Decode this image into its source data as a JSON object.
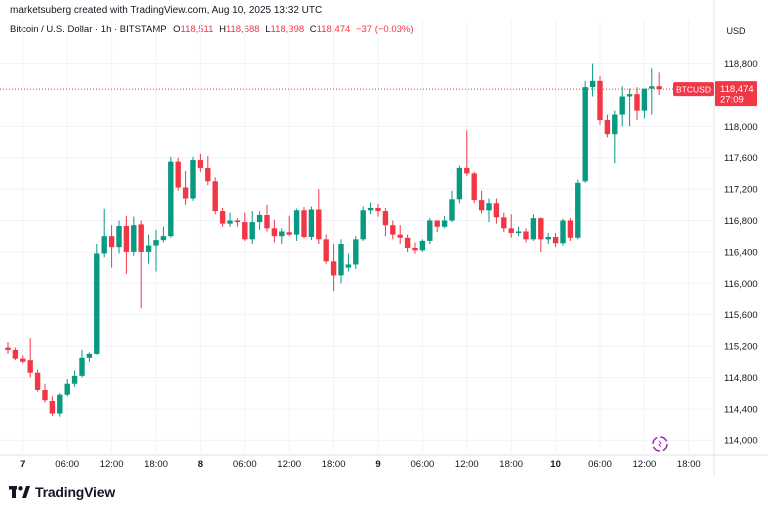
{
  "header": {
    "text": "marketsuberg created with TradingView.com, Aug 10, 2025 13:32 UTC"
  },
  "legend": {
    "symbol": "Bitcoin / U.S. Dollar · 1h · BITSTAMP",
    "o_label": "O",
    "o_value": "118,511",
    "h_label": "H",
    "h_value": "118,688",
    "l_label": "L",
    "l_value": "118,398",
    "c_label": "C",
    "c_value": "118,474",
    "change": "−37 (−0.03%)"
  },
  "currency": "USD",
  "footer": {
    "brand": "TradingView"
  },
  "colors": {
    "up": "#089981",
    "down": "#f23645",
    "grid": "#f0f3fa",
    "axis_text": "#131722"
  },
  "chart_data": {
    "type": "candlestick",
    "price_label": {
      "symbol": "BTCUSD",
      "price": "118,474",
      "countdown": "27:09",
      "value": 118474
    },
    "ylim": [
      113850,
      119100
    ],
    "y_ticks": [
      {
        "v": 118800,
        "t": "118,800"
      },
      {
        "v": 118000,
        "t": "118,000"
      },
      {
        "v": 117600,
        "t": "117,600"
      },
      {
        "v": 117200,
        "t": "117,200"
      },
      {
        "v": 116800,
        "t": "116,800"
      },
      {
        "v": 116400,
        "t": "116,400"
      },
      {
        "v": 116000,
        "t": "116,000"
      },
      {
        "v": 115600,
        "t": "115,600"
      },
      {
        "v": 115200,
        "t": "115,200"
      },
      {
        "v": 114800,
        "t": "114,800"
      },
      {
        "v": 114400,
        "t": "114,400"
      },
      {
        "v": 114000,
        "t": "114,000"
      }
    ],
    "x_ticks": [
      {
        "i": 2,
        "t": "7",
        "bold": true
      },
      {
        "i": 8,
        "t": "06:00"
      },
      {
        "i": 14,
        "t": "12:00"
      },
      {
        "i": 20,
        "t": "18:00"
      },
      {
        "i": 26,
        "t": "8",
        "bold": true
      },
      {
        "i": 32,
        "t": "06:00"
      },
      {
        "i": 38,
        "t": "12:00"
      },
      {
        "i": 44,
        "t": "18:00"
      },
      {
        "i": 50,
        "t": "9",
        "bold": true
      },
      {
        "i": 56,
        "t": "06:00"
      },
      {
        "i": 62,
        "t": "12:00"
      },
      {
        "i": 68,
        "t": "18:00"
      },
      {
        "i": 74,
        "t": "10",
        "bold": true
      },
      {
        "i": 80,
        "t": "06:00"
      },
      {
        "i": 86,
        "t": "12:00"
      },
      {
        "i": 92,
        "t": "18:00"
      }
    ],
    "candles": [
      [
        115180,
        115250,
        115100,
        115150
      ],
      [
        115150,
        115180,
        115020,
        115040
      ],
      [
        115040,
        115080,
        114980,
        115000
      ],
      [
        115020,
        115300,
        114800,
        114860
      ],
      [
        114860,
        114900,
        114620,
        114640
      ],
      [
        114640,
        114720,
        114480,
        114510
      ],
      [
        114500,
        114560,
        114310,
        114340
      ],
      [
        114340,
        114600,
        114300,
        114580
      ],
      [
        114580,
        114780,
        114560,
        114720
      ],
      [
        114720,
        114890,
        114680,
        114820
      ],
      [
        114820,
        115150,
        114800,
        115050
      ],
      [
        115050,
        115120,
        115000,
        115100
      ],
      [
        115100,
        116500,
        115090,
        116380
      ],
      [
        116380,
        116950,
        116330,
        116600
      ],
      [
        116600,
        116740,
        116200,
        116460
      ],
      [
        116460,
        116800,
        116380,
        116730
      ],
      [
        116730,
        116860,
        116120,
        116400
      ],
      [
        116400,
        116850,
        116350,
        116740
      ],
      [
        116750,
        116800,
        115680,
        116400
      ],
      [
        116400,
        116620,
        116250,
        116480
      ],
      [
        116480,
        116680,
        116150,
        116550
      ],
      [
        116550,
        116720,
        116520,
        116600
      ],
      [
        116600,
        117610,
        116580,
        117550
      ],
      [
        117550,
        117600,
        117180,
        117220
      ],
      [
        117220,
        117430,
        117000,
        117080
      ],
      [
        117080,
        117610,
        117050,
        117570
      ],
      [
        117570,
        117650,
        117420,
        117470
      ],
      [
        117470,
        117620,
        117250,
        117300
      ],
      [
        117300,
        117350,
        116880,
        116920
      ],
      [
        116920,
        116960,
        116720,
        116760
      ],
      [
        116760,
        116900,
        116720,
        116800
      ],
      [
        116800,
        116830,
        116720,
        116780
      ],
      [
        116780,
        116900,
        116540,
        116560
      ],
      [
        116560,
        116920,
        116500,
        116780
      ],
      [
        116780,
        116920,
        116680,
        116870
      ],
      [
        116870,
        117000,
        116660,
        116700
      ],
      [
        116700,
        116810,
        116520,
        116600
      ],
      [
        116600,
        116700,
        116500,
        116660
      ],
      [
        116650,
        116860,
        116600,
        116620
      ],
      [
        116620,
        116950,
        116540,
        116930
      ],
      [
        116930,
        116970,
        116570,
        116590
      ],
      [
        116590,
        116980,
        116550,
        116940
      ],
      [
        116940,
        117200,
        116500,
        116560
      ],
      [
        116560,
        116620,
        116250,
        116280
      ],
      [
        116280,
        116500,
        115900,
        116100
      ],
      [
        116100,
        116560,
        116000,
        116500
      ],
      [
        116200,
        116380,
        116150,
        116240
      ],
      [
        116240,
        116600,
        116180,
        116560
      ],
      [
        116560,
        116980,
        116540,
        116930
      ],
      [
        116930,
        117030,
        116880,
        116960
      ],
      [
        116960,
        117010,
        116850,
        116920
      ],
      [
        116920,
        116960,
        116600,
        116740
      ],
      [
        116740,
        116800,
        116560,
        116620
      ],
      [
        116620,
        116740,
        116500,
        116580
      ],
      [
        116580,
        116620,
        116400,
        116450
      ],
      [
        116450,
        116520,
        116380,
        116420
      ],
      [
        116420,
        116560,
        116400,
        116540
      ],
      [
        116540,
        116830,
        116500,
        116800
      ],
      [
        116800,
        116800,
        116650,
        116720
      ],
      [
        116720,
        116860,
        116700,
        116800
      ],
      [
        116800,
        117180,
        116780,
        117070
      ],
      [
        117070,
        117500,
        117020,
        117470
      ],
      [
        117470,
        117950,
        117370,
        117400
      ],
      [
        117400,
        117420,
        117020,
        117060
      ],
      [
        117060,
        117180,
        116890,
        116930
      ],
      [
        116930,
        117080,
        116780,
        117020
      ],
      [
        117020,
        117080,
        116760,
        116840
      ],
      [
        116840,
        116900,
        116650,
        116700
      ],
      [
        116700,
        116880,
        116580,
        116640
      ],
      [
        116640,
        116720,
        116600,
        116660
      ],
      [
        116660,
        116700,
        116520,
        116560
      ],
      [
        116560,
        116880,
        116540,
        116830
      ],
      [
        116830,
        116840,
        116400,
        116560
      ],
      [
        116560,
        116640,
        116500,
        116590
      ],
      [
        116590,
        116640,
        116460,
        116510
      ],
      [
        116510,
        116820,
        116480,
        116800
      ],
      [
        116800,
        116830,
        116540,
        116580
      ],
      [
        116580,
        117320,
        116560,
        117280
      ],
      [
        117300,
        118580,
        117280,
        118500
      ],
      [
        118500,
        118800,
        118380,
        118580
      ],
      [
        118580,
        118640,
        118020,
        118080
      ],
      [
        118080,
        118150,
        117860,
        117900
      ],
      [
        117900,
        118200,
        117530,
        118150
      ],
      [
        118150,
        118510,
        118000,
        118380
      ],
      [
        118380,
        118480,
        118000,
        118410
      ],
      [
        118410,
        118500,
        118080,
        118200
      ],
      [
        118200,
        118480,
        118100,
        118480
      ],
      [
        118480,
        118740,
        118150,
        118510
      ],
      [
        118511,
        118688,
        118398,
        118474
      ]
    ]
  }
}
